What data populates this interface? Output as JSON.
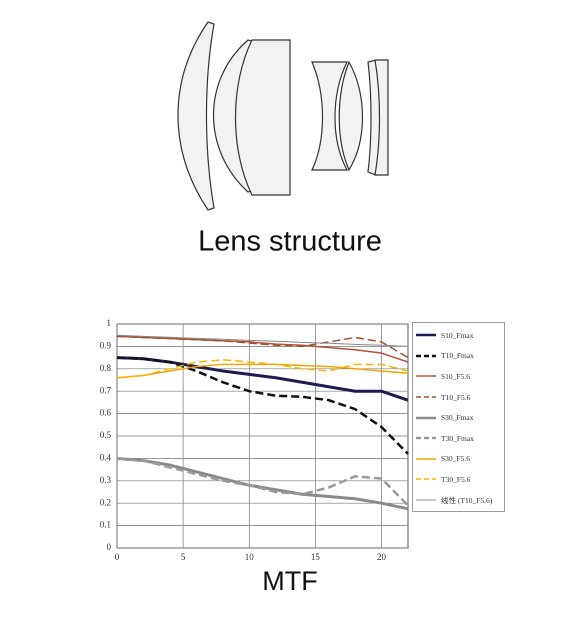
{
  "lens_caption": "Lens structure",
  "chart_data": {
    "type": "line",
    "title": "MTF",
    "x": [
      0,
      2,
      4,
      6,
      8,
      10,
      12,
      14,
      16,
      18,
      20,
      22
    ],
    "xlim": [
      0,
      22
    ],
    "xticks": [
      0,
      5,
      10,
      15,
      20
    ],
    "ylim": [
      0,
      1
    ],
    "yticks": [
      0,
      0.1,
      0.2,
      0.3,
      0.4,
      0.5,
      0.6,
      0.7,
      0.8,
      0.9,
      1
    ],
    "grid": true,
    "series": [
      {
        "name": "S10_Fmax",
        "color": "#1c1c50",
        "dashed": false,
        "width": 3,
        "values": [
          0.85,
          0.845,
          0.83,
          0.81,
          0.79,
          0.775,
          0.76,
          0.74,
          0.72,
          0.7,
          0.7,
          0.66
        ]
      },
      {
        "name": "T10_Fmax",
        "color": "#111111",
        "dashed": true,
        "width": 2.5,
        "values": [
          0.85,
          0.845,
          0.83,
          0.79,
          0.74,
          0.7,
          0.68,
          0.675,
          0.66,
          0.62,
          0.54,
          0.42
        ]
      },
      {
        "name": "S10_F5.6",
        "color": "#b5503a",
        "dashed": false,
        "width": 1.5,
        "values": [
          0.945,
          0.94,
          0.935,
          0.93,
          0.925,
          0.92,
          0.91,
          0.905,
          0.895,
          0.885,
          0.87,
          0.83
        ]
      },
      {
        "name": "T10_F5.6",
        "color": "#a0522d",
        "dashed": true,
        "width": 1.5,
        "values": [
          0.945,
          0.94,
          0.935,
          0.93,
          0.925,
          0.915,
          0.905,
          0.9,
          0.92,
          0.94,
          0.92,
          0.85
        ]
      },
      {
        "name": "S30_Fmax",
        "color": "#8a8a8a",
        "dashed": false,
        "width": 3,
        "values": [
          0.4,
          0.39,
          0.37,
          0.34,
          0.31,
          0.28,
          0.26,
          0.24,
          0.23,
          0.22,
          0.2,
          0.175
        ]
      },
      {
        "name": "T30_Fmax",
        "color": "#9a9a9a",
        "dashed": true,
        "width": 2.5,
        "values": [
          0.4,
          0.39,
          0.36,
          0.33,
          0.3,
          0.28,
          0.25,
          0.24,
          0.27,
          0.32,
          0.31,
          0.19
        ]
      },
      {
        "name": "S30_F5.6",
        "color": "#f0a500",
        "dashed": false,
        "width": 1.5,
        "values": [
          0.76,
          0.77,
          0.79,
          0.81,
          0.82,
          0.82,
          0.82,
          0.815,
          0.81,
          0.8,
          0.79,
          0.78
        ]
      },
      {
        "name": "T30_F5.6",
        "color": "#f5b800",
        "dashed": true,
        "width": 1.5,
        "values": [
          0.76,
          0.77,
          0.8,
          0.83,
          0.84,
          0.83,
          0.82,
          0.8,
          0.79,
          0.82,
          0.82,
          0.79
        ]
      },
      {
        "name": "线性 (T10_F5.6)",
        "color": "#888888",
        "dashed": false,
        "width": 1,
        "values": [
          0.95,
          0.945,
          0.941,
          0.936,
          0.932,
          0.927,
          0.923,
          0.918,
          0.914,
          0.909,
          0.905,
          0.9
        ]
      }
    ]
  }
}
